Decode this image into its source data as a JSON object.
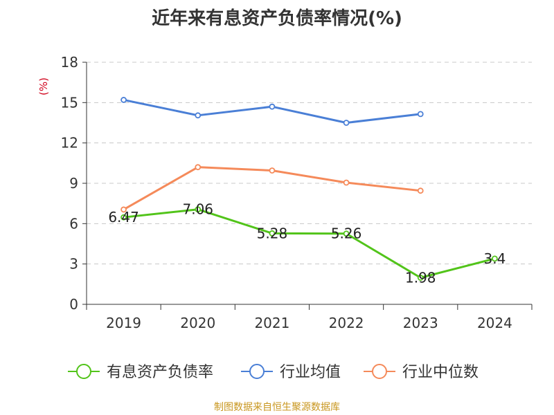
{
  "chart_data": {
    "type": "line",
    "title": "近年来有息资产负债率情况(%)",
    "ylabel": "(%)",
    "xlabel": "",
    "categories": [
      "2019",
      "2020",
      "2021",
      "2022",
      "2023",
      "2024"
    ],
    "ylim": [
      0,
      18
    ],
    "yticks": [
      0,
      3,
      6,
      9,
      12,
      15,
      18
    ],
    "grid": "horizontal-dashed",
    "legend_position": "bottom",
    "series": [
      {
        "name": "有息资产负债率",
        "color": "#52c41a",
        "values": [
          6.47,
          7.06,
          5.28,
          5.26,
          1.98,
          3.4
        ],
        "labels": [
          "6.47",
          "7.06",
          "5.28",
          "5.26",
          "1.98",
          "3.4"
        ]
      },
      {
        "name": "行业均值",
        "color": "#4a7fd6",
        "values": [
          15.2,
          14.05,
          14.7,
          13.5,
          14.15,
          null
        ]
      },
      {
        "name": "行业中位数",
        "color": "#f58a5a",
        "values": [
          7.05,
          10.2,
          9.95,
          9.05,
          8.45,
          null
        ]
      }
    ]
  },
  "source_note": "制图数据来自恒生聚源数据库"
}
